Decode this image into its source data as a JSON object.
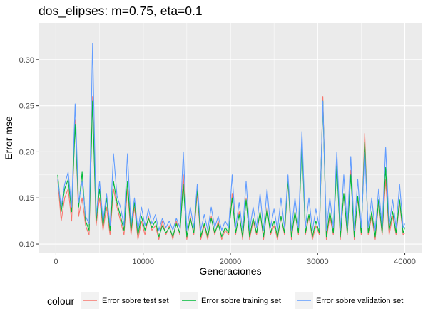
{
  "chart_data": {
    "type": "line",
    "title": "dos_elipses: m=0.75, eta=0.1",
    "xlabel": "Generaciones",
    "ylabel": "Error mse",
    "xlim": [
      -2000,
      42000
    ],
    "ylim": [
      0.09,
      0.34
    ],
    "x_ticks": [
      0,
      10000,
      20000,
      30000,
      40000
    ],
    "x_tick_labels": [
      "0",
      "10000",
      "20000",
      "30000",
      "40000"
    ],
    "y_ticks": [
      0.1,
      0.15,
      0.2,
      0.25,
      0.3
    ],
    "y_tick_labels": [
      "0.10",
      "0.15",
      "0.20",
      "0.25",
      "0.30"
    ],
    "grid": true,
    "legend": {
      "title": "colour",
      "position": "bottom"
    },
    "colors": {
      "test": "#F8766D",
      "training": "#00BA38",
      "validation": "#619CFF"
    },
    "x": [
      200,
      600,
      1000,
      1400,
      1800,
      2200,
      2600,
      3000,
      3400,
      3800,
      4200,
      4600,
      5000,
      5400,
      5800,
      6200,
      6600,
      7000,
      7400,
      7800,
      8200,
      8600,
      9000,
      9400,
      9800,
      10200,
      10600,
      11000,
      11400,
      11800,
      12200,
      12600,
      13000,
      13400,
      13800,
      14200,
      14600,
      15000,
      15400,
      15800,
      16200,
      16600,
      17000,
      17400,
      17800,
      18200,
      18600,
      19000,
      19400,
      19800,
      20200,
      20600,
      21000,
      21400,
      21800,
      22200,
      22600,
      23000,
      23400,
      23800,
      24200,
      24600,
      25000,
      25400,
      25800,
      26200,
      26600,
      27000,
      27400,
      27800,
      28200,
      28600,
      29000,
      29400,
      29800,
      30200,
      30600,
      31000,
      31400,
      31800,
      32200,
      32600,
      33000,
      33400,
      33800,
      34200,
      34600,
      35000,
      35400,
      35800,
      36200,
      36600,
      37000,
      37400,
      37800,
      38200,
      38600,
      39000,
      39400,
      39800,
      40000
    ],
    "series": [
      {
        "name": "Error sobre test set",
        "key": "test",
        "values": [
          0.17,
          0.125,
          0.15,
          0.16,
          0.125,
          0.235,
          0.13,
          0.15,
          0.12,
          0.11,
          0.26,
          0.12,
          0.15,
          0.115,
          0.14,
          0.11,
          0.16,
          0.14,
          0.125,
          0.11,
          0.16,
          0.11,
          0.14,
          0.105,
          0.125,
          0.11,
          0.13,
          0.115,
          0.12,
          0.105,
          0.125,
          0.11,
          0.12,
          0.105,
          0.125,
          0.11,
          0.175,
          0.105,
          0.13,
          0.11,
          0.155,
          0.105,
          0.12,
          0.105,
          0.13,
          0.11,
          0.125,
          0.105,
          0.115,
          0.11,
          0.155,
          0.11,
          0.135,
          0.105,
          0.15,
          0.105,
          0.125,
          0.11,
          0.135,
          0.105,
          0.14,
          0.11,
          0.12,
          0.105,
          0.13,
          0.11,
          0.17,
          0.105,
          0.135,
          0.11,
          0.215,
          0.11,
          0.13,
          0.105,
          0.12,
          0.11,
          0.26,
          0.105,
          0.13,
          0.11,
          0.19,
          0.105,
          0.155,
          0.11,
          0.18,
          0.105,
          0.15,
          0.11,
          0.22,
          0.11,
          0.13,
          0.105,
          0.145,
          0.11,
          0.17,
          0.11,
          0.13,
          0.11,
          0.145,
          0.11,
          0.112
        ]
      },
      {
        "name": "Error sobre training set",
        "key": "training",
        "values": [
          0.175,
          0.135,
          0.16,
          0.17,
          0.135,
          0.23,
          0.14,
          0.178,
          0.125,
          0.115,
          0.255,
          0.125,
          0.16,
          0.12,
          0.15,
          0.115,
          0.168,
          0.145,
          0.13,
          0.115,
          0.168,
          0.115,
          0.145,
          0.11,
          0.13,
          0.115,
          0.128,
          0.118,
          0.125,
          0.108,
          0.12,
          0.112,
          0.118,
          0.108,
          0.122,
          0.112,
          0.165,
          0.108,
          0.128,
          0.112,
          0.16,
          0.108,
          0.122,
          0.108,
          0.128,
          0.112,
          0.122,
          0.108,
          0.118,
          0.112,
          0.15,
          0.112,
          0.132,
          0.108,
          0.148,
          0.108,
          0.128,
          0.112,
          0.135,
          0.108,
          0.138,
          0.112,
          0.125,
          0.108,
          0.13,
          0.112,
          0.17,
          0.108,
          0.135,
          0.112,
          0.21,
          0.112,
          0.132,
          0.108,
          0.125,
          0.112,
          0.255,
          0.108,
          0.135,
          0.112,
          0.185,
          0.108,
          0.155,
          0.112,
          0.175,
          0.108,
          0.152,
          0.112,
          0.21,
          0.112,
          0.135,
          0.108,
          0.148,
          0.112,
          0.183,
          0.115,
          0.135,
          0.112,
          0.148,
          0.112,
          0.118
        ]
      },
      {
        "name": "Error sobre validation set",
        "key": "validation",
        "values": [
          0.17,
          0.14,
          0.165,
          0.178,
          0.14,
          0.252,
          0.145,
          0.168,
          0.13,
          0.122,
          0.318,
          0.13,
          0.168,
          0.125,
          0.155,
          0.12,
          0.198,
          0.152,
          0.14,
          0.12,
          0.198,
          0.12,
          0.15,
          0.115,
          0.14,
          0.12,
          0.138,
          0.122,
          0.132,
          0.115,
          0.128,
          0.118,
          0.125,
          0.115,
          0.128,
          0.118,
          0.2,
          0.115,
          0.14,
          0.118,
          0.165,
          0.115,
          0.132,
          0.115,
          0.14,
          0.118,
          0.13,
          0.115,
          0.125,
          0.118,
          0.175,
          0.118,
          0.145,
          0.115,
          0.168,
          0.115,
          0.14,
          0.118,
          0.155,
          0.115,
          0.16,
          0.118,
          0.138,
          0.115,
          0.15,
          0.118,
          0.175,
          0.115,
          0.15,
          0.118,
          0.222,
          0.118,
          0.15,
          0.115,
          0.138,
          0.118,
          0.255,
          0.115,
          0.15,
          0.118,
          0.2,
          0.115,
          0.175,
          0.118,
          0.195,
          0.115,
          0.17,
          0.118,
          0.2,
          0.118,
          0.15,
          0.115,
          0.16,
          0.118,
          0.205,
          0.12,
          0.148,
          0.118,
          0.165,
          0.118,
          0.122
        ]
      }
    ]
  }
}
